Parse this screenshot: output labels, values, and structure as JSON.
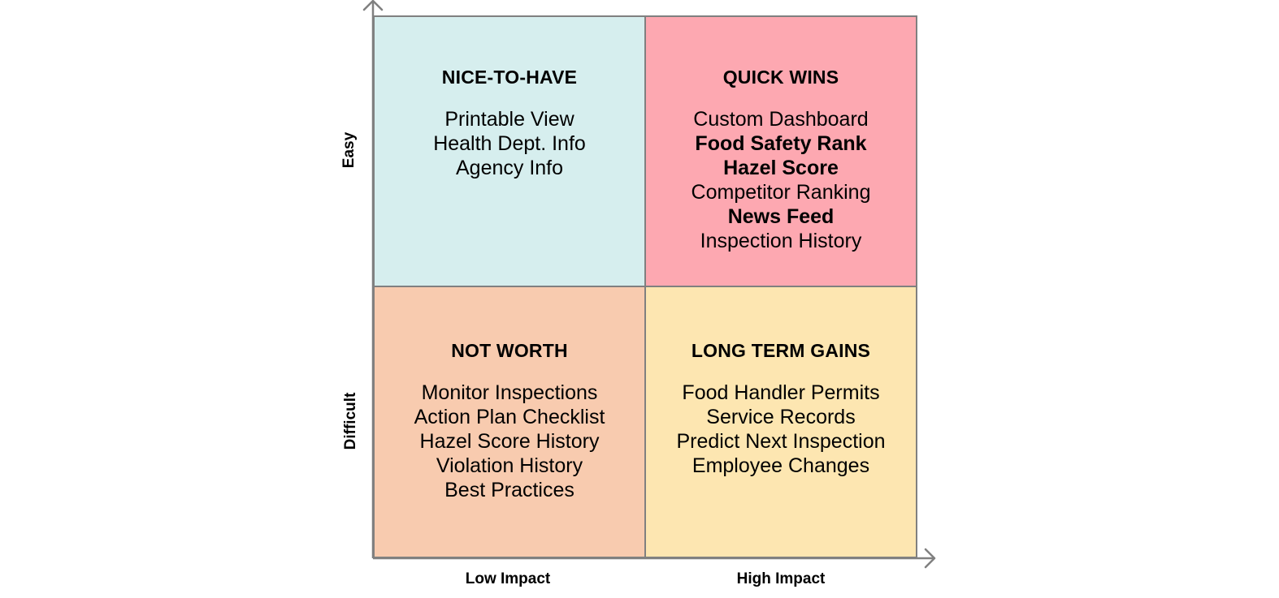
{
  "quadrants": {
    "top_left": {
      "title": "NICE-TO-HAVE",
      "color": "#d6eeee",
      "items": [
        {
          "text": "Printable View",
          "bold": false
        },
        {
          "text": "Health Dept. Info",
          "bold": false
        },
        {
          "text": "Agency Info",
          "bold": false
        }
      ]
    },
    "top_right": {
      "title": "QUICK WINS",
      "color": "#fda8b1",
      "items": [
        {
          "text": "Custom Dashboard",
          "bold": false
        },
        {
          "text": "Food Safety Rank",
          "bold": true
        },
        {
          "text": "Hazel Score",
          "bold": true
        },
        {
          "text": "Competitor Ranking",
          "bold": false
        },
        {
          "text": "News Feed",
          "bold": true
        },
        {
          "text": "Inspection History",
          "bold": false
        }
      ]
    },
    "bottom_left": {
      "title": "NOT WORTH",
      "color": "#f8cbaf",
      "items": [
        {
          "text": "Monitor Inspections",
          "bold": false
        },
        {
          "text": "Action Plan Checklist",
          "bold": false
        },
        {
          "text": "Hazel Score History",
          "bold": false
        },
        {
          "text": "Violation History",
          "bold": false
        },
        {
          "text": "Best Practices",
          "bold": false
        }
      ]
    },
    "bottom_right": {
      "title": "LONG TERM GAINS",
      "color": "#fde6b1",
      "items": [
        {
          "text": "Food Handler Permits",
          "bold": false
        },
        {
          "text": "Service Records",
          "bold": false
        },
        {
          "text": "Predict Next Inspection",
          "bold": false
        },
        {
          "text": "Employee Changes",
          "bold": false
        }
      ]
    }
  },
  "axes": {
    "x_low": "Low Impact",
    "x_high": "High Impact",
    "y_top": "Easy",
    "y_bottom": "Difficult",
    "color": "#808080"
  }
}
